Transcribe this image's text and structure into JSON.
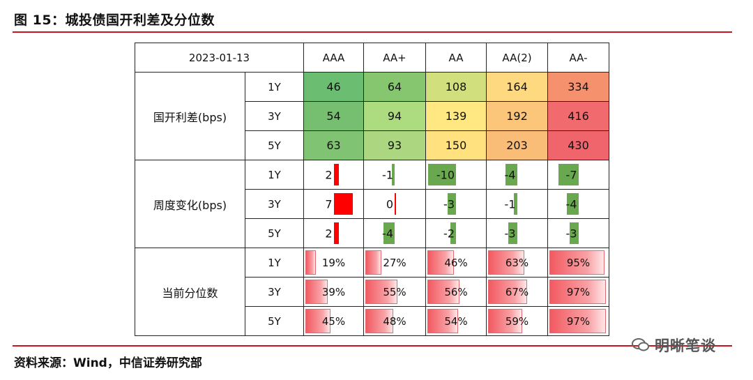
{
  "figure_title": "图 15：城投债国开利差及分位数",
  "source": "资料来源：Wind，中信证券研究部",
  "watermark": "明晰笔谈",
  "table": {
    "date": "2023-01-13",
    "columns": [
      "AAA",
      "AA+",
      "AA",
      "AA(2)",
      "AA-"
    ],
    "tenors": [
      "1Y",
      "3Y",
      "5Y"
    ],
    "spread": {
      "label": "国开利差(bps)",
      "rows": [
        {
          "tenor": "1Y",
          "values": [
            46,
            64,
            108,
            164,
            334
          ],
          "colors": [
            "#6bbd72",
            "#86c66f",
            "#d1e07d",
            "#fed980",
            "#f6916e"
          ]
        },
        {
          "tenor": "3Y",
          "values": [
            54,
            94,
            139,
            192,
            416
          ],
          "colors": [
            "#76bf70",
            "#addb80",
            "#ffe882",
            "#fbc57a",
            "#f16a6d"
          ]
        },
        {
          "tenor": "5Y",
          "values": [
            63,
            93,
            150,
            203,
            430
          ],
          "colors": [
            "#80c372",
            "#acd780",
            "#ffe27f",
            "#f9bd78",
            "#f0646b"
          ]
        }
      ]
    },
    "weekly_change": {
      "label": "周度变化(bps)",
      "scale_max": 10,
      "rows": [
        {
          "tenor": "1Y",
          "values": [
            2,
            -1,
            -10,
            -4,
            -7
          ]
        },
        {
          "tenor": "3Y",
          "values": [
            7,
            0,
            -3,
            -1,
            -4
          ]
        },
        {
          "tenor": "5Y",
          "values": [
            2,
            -4,
            -2,
            -3,
            -3
          ]
        }
      ]
    },
    "percentile": {
      "label": "当前分位数",
      "rows": [
        {
          "tenor": "1Y",
          "values": [
            19,
            27,
            46,
            63,
            95
          ],
          "labels": [
            "19%",
            "27%",
            "46%",
            "63%",
            "95%"
          ]
        },
        {
          "tenor": "3Y",
          "values": [
            39,
            55,
            56,
            67,
            97
          ],
          "labels": [
            "39%",
            "55%",
            "56%",
            "67%",
            "97%"
          ]
        },
        {
          "tenor": "5Y",
          "values": [
            45,
            48,
            54,
            59,
            97
          ],
          "labels": [
            "45%",
            "48%",
            "54%",
            "59%",
            "97%"
          ]
        }
      ]
    }
  }
}
